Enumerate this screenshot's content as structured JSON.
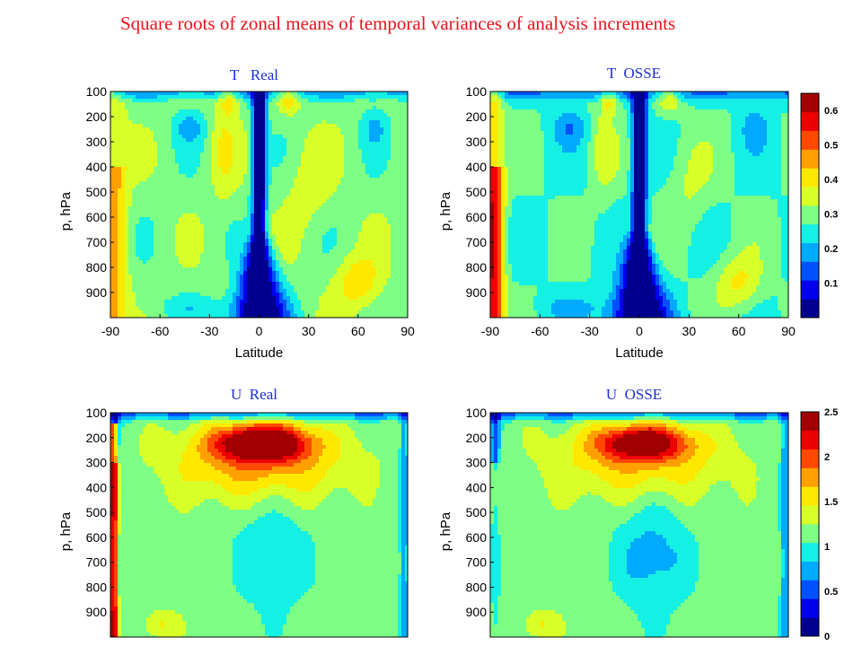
{
  "main_title": "Square roots of zonal means of temporal variances of analysis increments",
  "panels": [
    {
      "title": "T   Real"
    },
    {
      "title": "T  OSSE"
    },
    {
      "title": "U  Real"
    },
    {
      "title": "U  OSSE"
    }
  ],
  "chart_data": [
    {
      "type": "heatmap",
      "title": "T   Real",
      "xlabel": "Latitude",
      "ylabel": "p, hPa",
      "x_ticks": [
        "-90",
        "-60",
        "-30",
        "0",
        "30",
        "60",
        "90"
      ],
      "y_ticks": [
        "100",
        "200",
        "300",
        "400",
        "500",
        "600",
        "700",
        "800",
        "900"
      ],
      "xlim": [
        -90,
        90
      ],
      "ylim": [
        1000,
        100
      ],
      "field": "T",
      "colorbar": "T"
    },
    {
      "type": "heatmap",
      "title": "T  OSSE",
      "xlabel": "Latitude",
      "ylabel": "p, hPa",
      "x_ticks": [
        "-90",
        "-60",
        "-30",
        "0",
        "30",
        "60",
        "90"
      ],
      "y_ticks": [
        "100",
        "200",
        "300",
        "400",
        "500",
        "600",
        "700",
        "800",
        "900"
      ],
      "xlim": [
        -90,
        90
      ],
      "ylim": [
        1000,
        100
      ],
      "field": "T",
      "colorbar": "T"
    },
    {
      "type": "heatmap",
      "title": "U  Real",
      "xlabel": "",
      "ylabel": "p, hPa",
      "x_ticks": [],
      "y_ticks": [
        "100",
        "200",
        "300",
        "400",
        "500",
        "600",
        "700",
        "800",
        "900"
      ],
      "xlim": [
        -90,
        90
      ],
      "ylim": [
        1000,
        100
      ],
      "field": "U",
      "colorbar": "U"
    },
    {
      "type": "heatmap",
      "title": "U  OSSE",
      "xlabel": "",
      "ylabel": "p, hPa",
      "x_ticks": [],
      "y_ticks": [
        "100",
        "200",
        "300",
        "400",
        "500",
        "600",
        "700",
        "800",
        "900"
      ],
      "xlim": [
        -90,
        90
      ],
      "ylim": [
        1000,
        100
      ],
      "field": "U",
      "colorbar": "U"
    }
  ],
  "colorbars": {
    "T": {
      "range": [
        0,
        0.65
      ],
      "tick_values": [
        0.1,
        0.2,
        0.3,
        0.4,
        0.5,
        0.6
      ],
      "tick_labels": [
        "0.1",
        "0.2",
        "0.3",
        "0.4",
        "0.5",
        "0.6"
      ],
      "colors": [
        "#00008f",
        "#0000ee",
        "#0050ff",
        "#00aaff",
        "#14f0e4",
        "#7cff84",
        "#d8ff28",
        "#ffe800",
        "#ffa000",
        "#ff4800",
        "#ee0000",
        "#a00000"
      ]
    },
    "U": {
      "range": [
        0,
        2.5
      ],
      "tick_values": [
        0,
        0.5,
        1,
        1.5,
        2,
        2.5
      ],
      "tick_labels": [
        "0",
        "0.5",
        "1",
        "1.5",
        "2",
        "2.5"
      ],
      "colors": [
        "#00008f",
        "#0000ee",
        "#0050ff",
        "#00aaff",
        "#14f0e4",
        "#7cff84",
        "#d8ff28",
        "#ffe800",
        "#ffa000",
        "#ff4800",
        "#ee0000",
        "#a00000"
      ]
    }
  }
}
